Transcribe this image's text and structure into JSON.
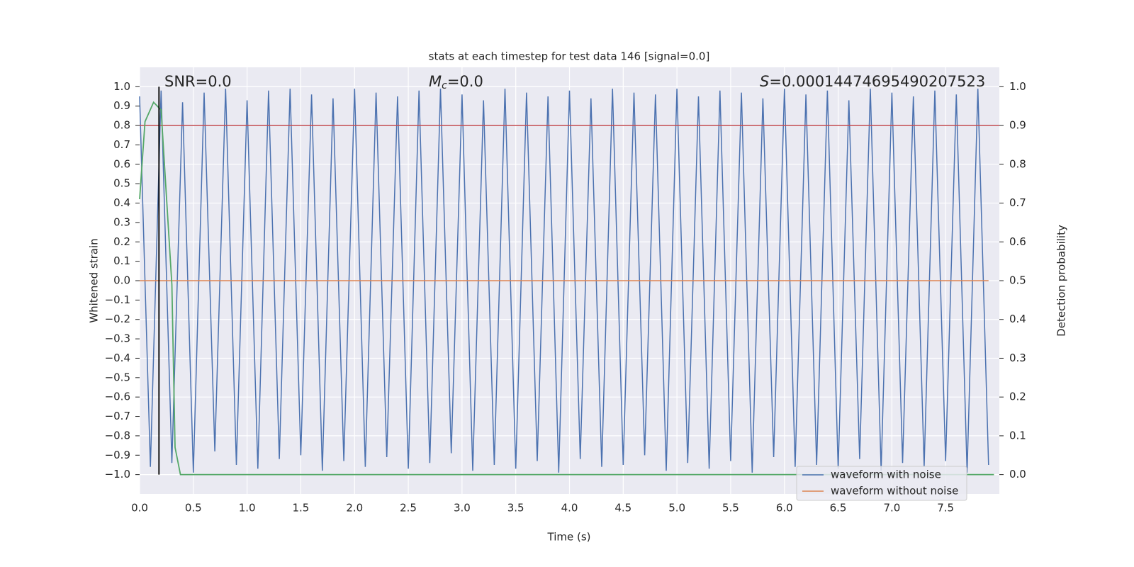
{
  "chart_data": {
    "type": "line",
    "title": "stats at each timestep for test data 146 [signal=0.0]",
    "xlabel": "Time (s)",
    "ylabel": "Whitened strain",
    "y2label": "Detection probability",
    "annotations": [
      {
        "text": "SNR=0.0"
      },
      {
        "symbol": "M",
        "subscript": "c",
        "text": "=0.0"
      },
      {
        "symbol": "S",
        "text": "=0.00014474695490207523"
      }
    ],
    "xlim": [
      0,
      8
    ],
    "ylim": [
      -1.1,
      1.1
    ],
    "y2lim": [
      -0.05,
      1.05
    ],
    "xticks": [
      {
        "value": 0,
        "label": "0.0"
      },
      0.5,
      {
        "value": 1,
        "label": "1.0"
      },
      1.5,
      {
        "value": 2,
        "label": "2.0"
      },
      2.5,
      {
        "value": 3,
        "label": "3.0"
      },
      3.5,
      {
        "value": 4,
        "label": "4.0"
      },
      4.5,
      {
        "value": 5,
        "label": "5.0"
      },
      5.5,
      {
        "value": 6,
        "label": "6.0"
      },
      6.5,
      {
        "value": 7,
        "label": "7.0"
      },
      7.5
    ],
    "yticks": [
      {
        "value": -1,
        "label": "−1.0"
      },
      {
        "value": -0.9,
        "label": "−0.9"
      },
      {
        "value": -0.8,
        "label": "−0.8"
      },
      {
        "value": -0.7,
        "label": "−0.7"
      },
      {
        "value": -0.6,
        "label": "−0.6"
      },
      {
        "value": -0.5,
        "label": "−0.5"
      },
      {
        "value": -0.4,
        "label": "−0.4"
      },
      {
        "value": -0.3,
        "label": "−0.3"
      },
      {
        "value": -0.2,
        "label": "−0.2"
      },
      {
        "value": -0.1,
        "label": "−0.1"
      },
      {
        "value": 0,
        "label": "0.0"
      },
      0.1,
      0.2,
      0.3,
      0.4,
      0.5,
      0.6,
      0.7,
      0.8,
      0.9,
      {
        "value": 1,
        "label": "1.0"
      }
    ],
    "y2ticks": [
      {
        "value": 0,
        "label": "0.0"
      },
      0.1,
      0.2,
      0.3,
      0.4,
      0.5,
      0.6,
      0.7,
      0.8,
      0.9,
      {
        "value": 1,
        "label": "1.0"
      }
    ],
    "grid": true,
    "legend": "lower right",
    "x": [
      0,
      0.1,
      0.2,
      0.3,
      0.4,
      0.5,
      0.6,
      0.7,
      0.8,
      0.9,
      1,
      1.1,
      1.2,
      1.3,
      1.4,
      1.5,
      1.6,
      1.7,
      1.8,
      1.9,
      2,
      2.1,
      2.2,
      2.3,
      2.4,
      2.5,
      2.6,
      2.7,
      2.8,
      2.9,
      3,
      3.1,
      3.2,
      3.3,
      3.4,
      3.5,
      3.6,
      3.7,
      3.8,
      3.9,
      4,
      4.1,
      4.2,
      4.3,
      4.4,
      4.5,
      4.6,
      4.7,
      4.8,
      4.9,
      5,
      5.1,
      5.2,
      5.3,
      5.4,
      5.5,
      5.6,
      5.7,
      5.8,
      5.9,
      6,
      6.1,
      6.2,
      6.3,
      6.4,
      6.5,
      6.6,
      6.7,
      6.8,
      6.9,
      7,
      7.1,
      7.2,
      7.3,
      7.4,
      7.5,
      7.6,
      7.7,
      7.8,
      7.9
    ],
    "series": [
      {
        "name": "waveform with noise",
        "color": "#4c72b0",
        "values": [
          0.95,
          -0.96,
          0.98,
          -0.94,
          0.92,
          -0.99,
          0.97,
          -0.88,
          0.99,
          -0.95,
          0.93,
          -0.97,
          0.98,
          -0.92,
          0.99,
          -0.9,
          0.96,
          -0.98,
          0.94,
          -0.93,
          0.99,
          -0.96,
          0.97,
          -0.91,
          0.95,
          -0.97,
          0.98,
          -0.94,
          0.99,
          -0.89,
          0.96,
          -0.98,
          0.93,
          -0.95,
          0.99,
          -0.97,
          0.97,
          -0.93,
          0.95,
          -0.99,
          0.98,
          -0.92,
          0.94,
          -0.96,
          0.99,
          -0.95,
          0.97,
          -0.9,
          0.96,
          -0.98,
          0.99,
          -0.94,
          0.95,
          -0.97,
          0.98,
          -0.93,
          0.97,
          -0.99,
          0.94,
          -0.91,
          0.99,
          -0.96,
          0.96,
          -0.95,
          0.98,
          -0.97,
          0.93,
          -0.92,
          0.99,
          -0.98,
          0.97,
          -0.94,
          0.95,
          -0.96,
          0.98,
          -0.93,
          0.96,
          -0.99,
          0.99,
          -0.95
        ]
      },
      {
        "name": "waveform without noise",
        "color": "#dd8452",
        "values": [
          0,
          0,
          0,
          0,
          0,
          0,
          0,
          0,
          0,
          0,
          0,
          0,
          0,
          0,
          0,
          0,
          0,
          0,
          0,
          0,
          0,
          0,
          0,
          0,
          0,
          0,
          0,
          0,
          0,
          0,
          0,
          0,
          0,
          0,
          0,
          0,
          0,
          0,
          0,
          0,
          0,
          0,
          0,
          0,
          0,
          0,
          0,
          0,
          0,
          0,
          0,
          0,
          0,
          0,
          0,
          0,
          0,
          0,
          0,
          0,
          0,
          0,
          0,
          0,
          0,
          0,
          0,
          0,
          0,
          0,
          0,
          0,
          0,
          0,
          0,
          0,
          0,
          0,
          0,
          0
        ]
      }
    ],
    "probability": {
      "color": "#55a868",
      "axis": "y2",
      "x": [
        0,
        0.05,
        0.13,
        0.2,
        0.3,
        0.33,
        0.38,
        7.95
      ],
      "values": [
        0.71,
        0.91,
        0.96,
        0.94,
        0.49,
        0.07,
        0,
        0
      ]
    },
    "threshold": {
      "color": "#c44e52",
      "axis": "y2",
      "value": 0.9
    },
    "marker": {
      "color": "#000000",
      "x": 0.18
    }
  }
}
